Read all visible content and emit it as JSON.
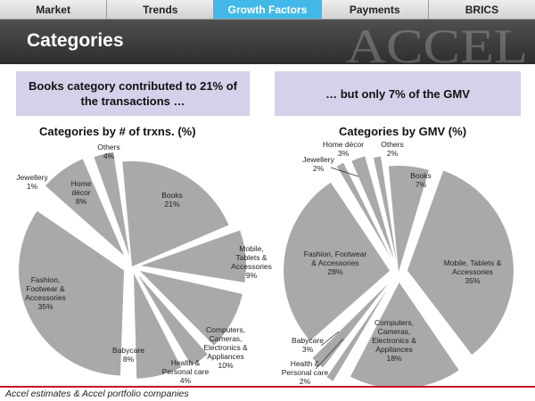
{
  "tabs": [
    {
      "label": "Market"
    },
    {
      "label": "Trends"
    },
    {
      "label": "Growth Factors",
      "active": true
    },
    {
      "label": "Payments"
    },
    {
      "label": "BRICS"
    }
  ],
  "header": {
    "title": "Categories",
    "watermark": "ACCEL"
  },
  "callouts": {
    "left": "Books category contributed to 21% of the transactions …",
    "right": "… but only 7% of the GMV"
  },
  "colors": {
    "slice": "#a9a9a9",
    "callout_bg": "#d4d2ea",
    "active_tab": "#42b9e8",
    "footer_rule": "#c8102e"
  },
  "chart_data": [
    {
      "type": "pie",
      "title": "Categories by # of trxns. (%)",
      "slices": [
        {
          "label": "Books",
          "value": 21
        },
        {
          "label": "Mobile, Tablets & Accessories",
          "value": 9
        },
        {
          "label": "Computers, Cameras, Electronics & Appliances",
          "value": 10
        },
        {
          "label": "Health & Personal care",
          "value": 4
        },
        {
          "label": "Babycare",
          "value": 8
        },
        {
          "label": "Fashion, Footwear & Accessories",
          "value": 35
        },
        {
          "label": "Jewellery",
          "value": 1
        },
        {
          "label": "Home décor",
          "value": 8
        },
        {
          "label": "Others",
          "value": 4
        }
      ]
    },
    {
      "type": "pie",
      "title": "Categories by GMV (%)",
      "slices": [
        {
          "label": "Books",
          "value": 7
        },
        {
          "label": "Mobile, Tablets & Accessories",
          "value": 35
        },
        {
          "label": "Computers, Cameras, Electronics & Appliances",
          "value": 18
        },
        {
          "label": "Health & Personal care",
          "value": 2
        },
        {
          "label": "Babycare",
          "value": 3
        },
        {
          "label": "Fashion, Footwear & Accessories",
          "value": 28
        },
        {
          "label": "Jewellery",
          "value": 2
        },
        {
          "label": "Home décor",
          "value": 3
        },
        {
          "label": "Others",
          "value": 2
        }
      ]
    }
  ],
  "footer": {
    "source": "Accel estimates & Accel portfolio companies"
  }
}
